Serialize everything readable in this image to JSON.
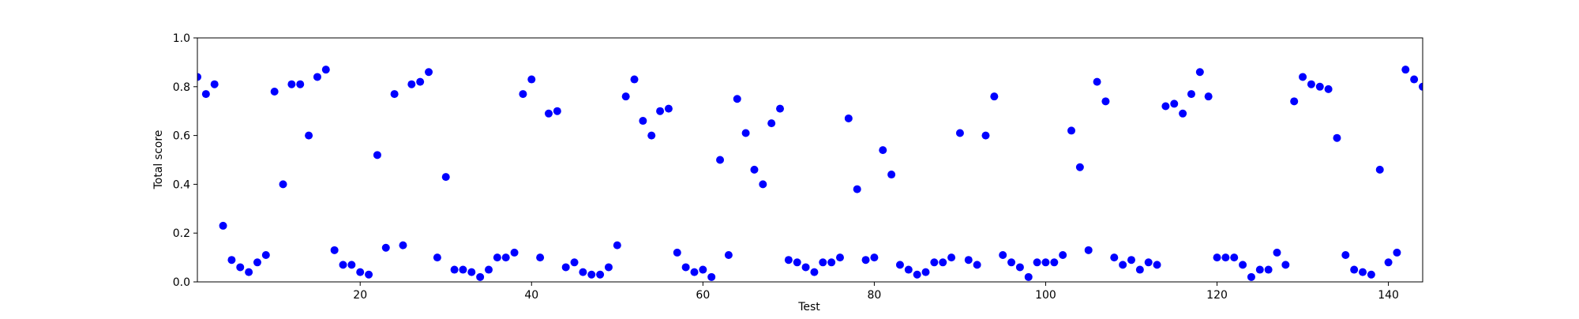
{
  "chart_data": {
    "type": "scatter",
    "title": "",
    "xlabel": "Test",
    "ylabel": "Total score",
    "xlim": [
      1,
      144
    ],
    "ylim": [
      0.0,
      1.0
    ],
    "x_ticks": [
      20,
      40,
      60,
      80,
      100,
      120,
      140
    ],
    "x_tick_labels": [
      "20",
      "40",
      "60",
      "80",
      "100",
      "120",
      "140"
    ],
    "y_ticks": [
      0.0,
      0.2,
      0.4,
      0.6,
      0.8,
      1.0
    ],
    "y_tick_labels": [
      "0.0",
      "0.2",
      "0.4",
      "0.6",
      "0.8",
      "1.0"
    ],
    "grid": false,
    "marker_color": "#0000ff",
    "x": [
      1,
      2,
      3,
      4,
      5,
      6,
      7,
      8,
      9,
      10,
      11,
      12,
      13,
      14,
      15,
      16,
      17,
      18,
      19,
      20,
      21,
      22,
      23,
      24,
      25,
      26,
      27,
      28,
      29,
      30,
      31,
      32,
      33,
      34,
      35,
      36,
      37,
      38,
      39,
      40,
      41,
      42,
      43,
      44,
      45,
      46,
      47,
      48,
      49,
      50,
      51,
      52,
      53,
      54,
      55,
      56,
      57,
      58,
      59,
      60,
      61,
      62,
      63,
      64,
      65,
      66,
      67,
      68,
      69,
      70,
      71,
      72,
      73,
      74,
      75,
      76,
      77,
      78,
      79,
      80,
      81,
      82,
      83,
      84,
      85,
      86,
      87,
      88,
      89,
      90,
      91,
      92,
      93,
      94,
      95,
      96,
      97,
      98,
      99,
      100,
      101,
      102,
      103,
      104,
      105,
      106,
      107,
      108,
      109,
      110,
      111,
      112,
      113,
      114,
      115,
      116,
      117,
      118,
      119,
      120,
      121,
      122,
      123,
      124,
      125,
      126,
      127,
      128,
      129,
      130,
      131,
      132,
      133,
      134,
      135,
      136,
      137,
      138,
      139,
      140,
      141,
      142,
      143,
      144
    ],
    "y": [
      0.84,
      0.77,
      0.81,
      0.23,
      0.09,
      0.06,
      0.04,
      0.08,
      0.11,
      0.78,
      0.4,
      0.81,
      0.81,
      0.6,
      0.84,
      0.87,
      0.13,
      0.07,
      0.07,
      0.04,
      0.03,
      0.52,
      0.14,
      0.77,
      0.15,
      0.81,
      0.82,
      0.86,
      0.1,
      0.43,
      0.05,
      0.05,
      0.04,
      0.02,
      0.05,
      0.1,
      0.1,
      0.12,
      0.77,
      0.83,
      0.1,
      0.69,
      0.7,
      0.06,
      0.08,
      0.04,
      0.03,
      0.03,
      0.06,
      0.15,
      0.76,
      0.83,
      0.66,
      0.6,
      0.7,
      0.71,
      0.12,
      0.06,
      0.04,
      0.05,
      0.02,
      0.5,
      0.11,
      0.75,
      0.61,
      0.46,
      0.4,
      0.65,
      0.71,
      0.09,
      0.08,
      0.06,
      0.04,
      0.08,
      0.08,
      0.1,
      0.67,
      0.38,
      0.09,
      0.1,
      0.54,
      0.44,
      0.07,
      0.05,
      0.03,
      0.04,
      0.08,
      0.08,
      0.1,
      0.61,
      0.09,
      0.07,
      0.6,
      0.76,
      0.11,
      0.08,
      0.06,
      0.02,
      0.08,
      0.08,
      0.08,
      0.11,
      0.62,
      0.47,
      0.13,
      0.82,
      0.74,
      0.1,
      0.07,
      0.09,
      0.05,
      0.08,
      0.07,
      0.72,
      0.73,
      0.69,
      0.77,
      0.86,
      0.76,
      0.1,
      0.1,
      0.1,
      0.07,
      0.02,
      0.05,
      0.05,
      0.12,
      0.07,
      0.74,
      0.84,
      0.81,
      0.8,
      0.79,
      0.59,
      0.11,
      0.05,
      0.04,
      0.03,
      0.46,
      0.08,
      0.12,
      0.87,
      0.83,
      0.8
    ]
  }
}
